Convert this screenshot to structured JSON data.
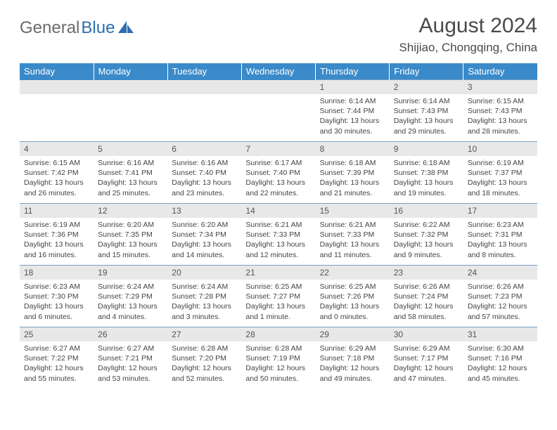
{
  "brand": {
    "part1": "General",
    "part2": "Blue"
  },
  "header": {
    "month_title": "August 2024",
    "location": "Shijiao, Chongqing, China"
  },
  "colors": {
    "header_bg": "#3a8ac9",
    "header_text": "#ffffff",
    "daynum_bg": "#e8e8e8",
    "border": "#7a9fc0",
    "logo_gray": "#6b6b6b",
    "logo_blue": "#2c6fb0"
  },
  "weekdays": [
    "Sunday",
    "Monday",
    "Tuesday",
    "Wednesday",
    "Thursday",
    "Friday",
    "Saturday"
  ],
  "weeks": [
    [
      null,
      null,
      null,
      null,
      {
        "n": "1",
        "sr": "6:14 AM",
        "ss": "7:44 PM",
        "dl": "13 hours and 30 minutes."
      },
      {
        "n": "2",
        "sr": "6:14 AM",
        "ss": "7:43 PM",
        "dl": "13 hours and 29 minutes."
      },
      {
        "n": "3",
        "sr": "6:15 AM",
        "ss": "7:43 PM",
        "dl": "13 hours and 28 minutes."
      }
    ],
    [
      {
        "n": "4",
        "sr": "6:15 AM",
        "ss": "7:42 PM",
        "dl": "13 hours and 26 minutes."
      },
      {
        "n": "5",
        "sr": "6:16 AM",
        "ss": "7:41 PM",
        "dl": "13 hours and 25 minutes."
      },
      {
        "n": "6",
        "sr": "6:16 AM",
        "ss": "7:40 PM",
        "dl": "13 hours and 23 minutes."
      },
      {
        "n": "7",
        "sr": "6:17 AM",
        "ss": "7:40 PM",
        "dl": "13 hours and 22 minutes."
      },
      {
        "n": "8",
        "sr": "6:18 AM",
        "ss": "7:39 PM",
        "dl": "13 hours and 21 minutes."
      },
      {
        "n": "9",
        "sr": "6:18 AM",
        "ss": "7:38 PM",
        "dl": "13 hours and 19 minutes."
      },
      {
        "n": "10",
        "sr": "6:19 AM",
        "ss": "7:37 PM",
        "dl": "13 hours and 18 minutes."
      }
    ],
    [
      {
        "n": "11",
        "sr": "6:19 AM",
        "ss": "7:36 PM",
        "dl": "13 hours and 16 minutes."
      },
      {
        "n": "12",
        "sr": "6:20 AM",
        "ss": "7:35 PM",
        "dl": "13 hours and 15 minutes."
      },
      {
        "n": "13",
        "sr": "6:20 AM",
        "ss": "7:34 PM",
        "dl": "13 hours and 14 minutes."
      },
      {
        "n": "14",
        "sr": "6:21 AM",
        "ss": "7:33 PM",
        "dl": "13 hours and 12 minutes."
      },
      {
        "n": "15",
        "sr": "6:21 AM",
        "ss": "7:33 PM",
        "dl": "13 hours and 11 minutes."
      },
      {
        "n": "16",
        "sr": "6:22 AM",
        "ss": "7:32 PM",
        "dl": "13 hours and 9 minutes."
      },
      {
        "n": "17",
        "sr": "6:23 AM",
        "ss": "7:31 PM",
        "dl": "13 hours and 8 minutes."
      }
    ],
    [
      {
        "n": "18",
        "sr": "6:23 AM",
        "ss": "7:30 PM",
        "dl": "13 hours and 6 minutes."
      },
      {
        "n": "19",
        "sr": "6:24 AM",
        "ss": "7:29 PM",
        "dl": "13 hours and 4 minutes."
      },
      {
        "n": "20",
        "sr": "6:24 AM",
        "ss": "7:28 PM",
        "dl": "13 hours and 3 minutes."
      },
      {
        "n": "21",
        "sr": "6:25 AM",
        "ss": "7:27 PM",
        "dl": "13 hours and 1 minute."
      },
      {
        "n": "22",
        "sr": "6:25 AM",
        "ss": "7:26 PM",
        "dl": "13 hours and 0 minutes."
      },
      {
        "n": "23",
        "sr": "6:26 AM",
        "ss": "7:24 PM",
        "dl": "12 hours and 58 minutes."
      },
      {
        "n": "24",
        "sr": "6:26 AM",
        "ss": "7:23 PM",
        "dl": "12 hours and 57 minutes."
      }
    ],
    [
      {
        "n": "25",
        "sr": "6:27 AM",
        "ss": "7:22 PM",
        "dl": "12 hours and 55 minutes."
      },
      {
        "n": "26",
        "sr": "6:27 AM",
        "ss": "7:21 PM",
        "dl": "12 hours and 53 minutes."
      },
      {
        "n": "27",
        "sr": "6:28 AM",
        "ss": "7:20 PM",
        "dl": "12 hours and 52 minutes."
      },
      {
        "n": "28",
        "sr": "6:28 AM",
        "ss": "7:19 PM",
        "dl": "12 hours and 50 minutes."
      },
      {
        "n": "29",
        "sr": "6:29 AM",
        "ss": "7:18 PM",
        "dl": "12 hours and 49 minutes."
      },
      {
        "n": "30",
        "sr": "6:29 AM",
        "ss": "7:17 PM",
        "dl": "12 hours and 47 minutes."
      },
      {
        "n": "31",
        "sr": "6:30 AM",
        "ss": "7:16 PM",
        "dl": "12 hours and 45 minutes."
      }
    ]
  ],
  "labels": {
    "sunrise": "Sunrise:",
    "sunset": "Sunset:",
    "daylight": "Daylight:"
  }
}
